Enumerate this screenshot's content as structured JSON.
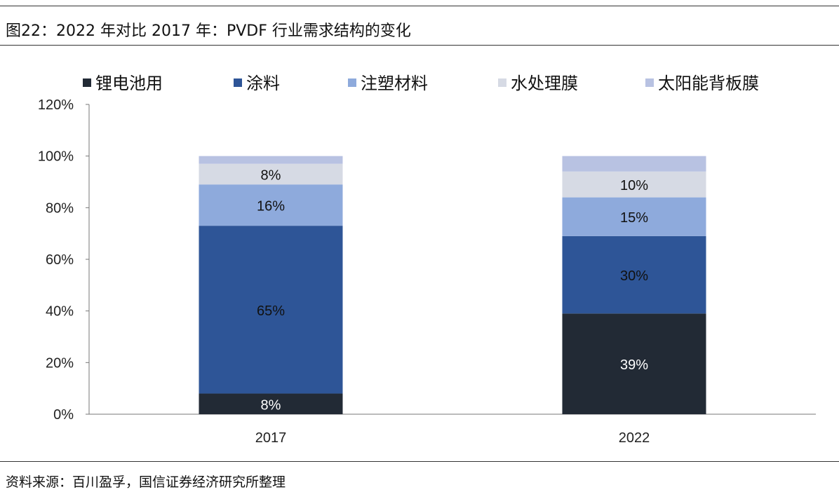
{
  "title": "图22：2022 年对比 2017 年：PVDF 行业需求结构的变化",
  "source": "资料来源：百川盈孚，国信证券经济研究所整理",
  "chart_data": {
    "type": "bar",
    "stacked": true,
    "categories": [
      "2017",
      "2022"
    ],
    "series": [
      {
        "name": "锂电池用",
        "color": "#222a35",
        "values": [
          8,
          39
        ],
        "labels": [
          "8%",
          "39%"
        ],
        "label_color": "#ffffff"
      },
      {
        "name": "涂料",
        "color": "#2e5597",
        "values": [
          65,
          30
        ],
        "labels": [
          "65%",
          "30%"
        ],
        "label_color": "#111111"
      },
      {
        "name": "注塑材料",
        "color": "#8eaadc",
        "values": [
          16,
          15
        ],
        "labels": [
          "16%",
          "15%"
        ],
        "label_color": "#111111"
      },
      {
        "name": "水处理膜",
        "color": "#d6dae4",
        "values": [
          8,
          10
        ],
        "labels": [
          "8%",
          "10%"
        ],
        "label_color": "#111111"
      },
      {
        "name": "太阳能背板膜",
        "color": "#b8c2e2",
        "values": [
          3,
          6
        ],
        "labels": [
          null,
          null
        ],
        "label_color": "#111111"
      }
    ],
    "ylim": [
      0,
      120
    ],
    "yticks": [
      0,
      20,
      40,
      60,
      80,
      100,
      120
    ],
    "ytick_labels": [
      "0%",
      "20%",
      "40%",
      "60%",
      "80%",
      "100%",
      "120%"
    ],
    "legend_position": "top",
    "grid": false,
    "xlabel": "",
    "ylabel": ""
  }
}
